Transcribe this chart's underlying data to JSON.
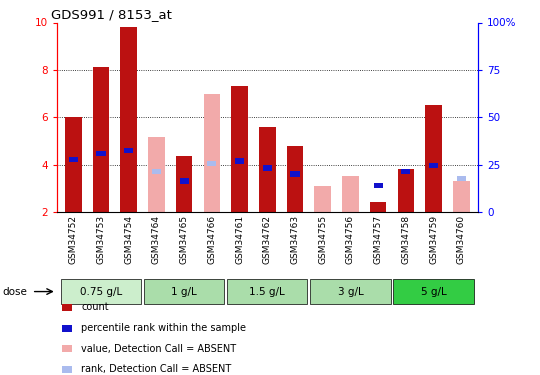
{
  "title": "GDS991 / 8153_at",
  "samples": [
    "GSM34752",
    "GSM34753",
    "GSM34754",
    "GSM34764",
    "GSM34765",
    "GSM34766",
    "GSM34761",
    "GSM34762",
    "GSM34763",
    "GSM34755",
    "GSM34756",
    "GSM34757",
    "GSM34758",
    "GSM34759",
    "GSM34760"
  ],
  "count_values": [
    6.0,
    8.1,
    9.8,
    null,
    4.35,
    null,
    7.3,
    5.6,
    4.8,
    null,
    null,
    2.4,
    3.8,
    6.5,
    null
  ],
  "count_absent_values": [
    null,
    null,
    null,
    5.15,
    null,
    7.0,
    null,
    null,
    null,
    3.1,
    3.5,
    null,
    null,
    null,
    3.3
  ],
  "rank_values": [
    4.2,
    4.45,
    4.6,
    null,
    3.3,
    null,
    4.15,
    3.85,
    3.6,
    null,
    null,
    3.1,
    3.7,
    3.95,
    null
  ],
  "rank_absent_values": [
    null,
    null,
    null,
    3.7,
    null,
    4.05,
    null,
    null,
    null,
    null,
    null,
    null,
    null,
    null,
    3.4
  ],
  "ylim": [
    2,
    10
  ],
  "ylim_right": [
    0,
    100
  ],
  "yticks_left": [
    2,
    4,
    6,
    8,
    10
  ],
  "yticks_right": [
    0,
    25,
    50,
    75,
    100
  ],
  "ytick_right_labels": [
    "0",
    "25",
    "50",
    "75",
    "100%"
  ],
  "color_count": "#bb1111",
  "color_rank": "#1111cc",
  "color_absent_count": "#f2aaaa",
  "color_absent_rank": "#aabbee",
  "bar_width": 0.6,
  "dose_groups": [
    {
      "label": "0.75 g/L",
      "start": 0,
      "end": 2
    },
    {
      "label": "1 g/L",
      "start": 3,
      "end": 5
    },
    {
      "label": "1.5 g/L",
      "start": 6,
      "end": 8
    },
    {
      "label": "3 g/L",
      "start": 9,
      "end": 11
    },
    {
      "label": "5 g/L",
      "start": 12,
      "end": 14
    }
  ],
  "dose_colors": [
    "#cceecc",
    "#aaddaa",
    "#aaddaa",
    "#aaddaa",
    "#33cc44"
  ],
  "legend_items": [
    {
      "label": "count",
      "color": "#bb1111"
    },
    {
      "label": "percentile rank within the sample",
      "color": "#1111cc"
    },
    {
      "label": "value, Detection Call = ABSENT",
      "color": "#f2aaaa"
    },
    {
      "label": "rank, Detection Call = ABSENT",
      "color": "#aabbee"
    }
  ],
  "grid_yticks": [
    4,
    6,
    8
  ]
}
